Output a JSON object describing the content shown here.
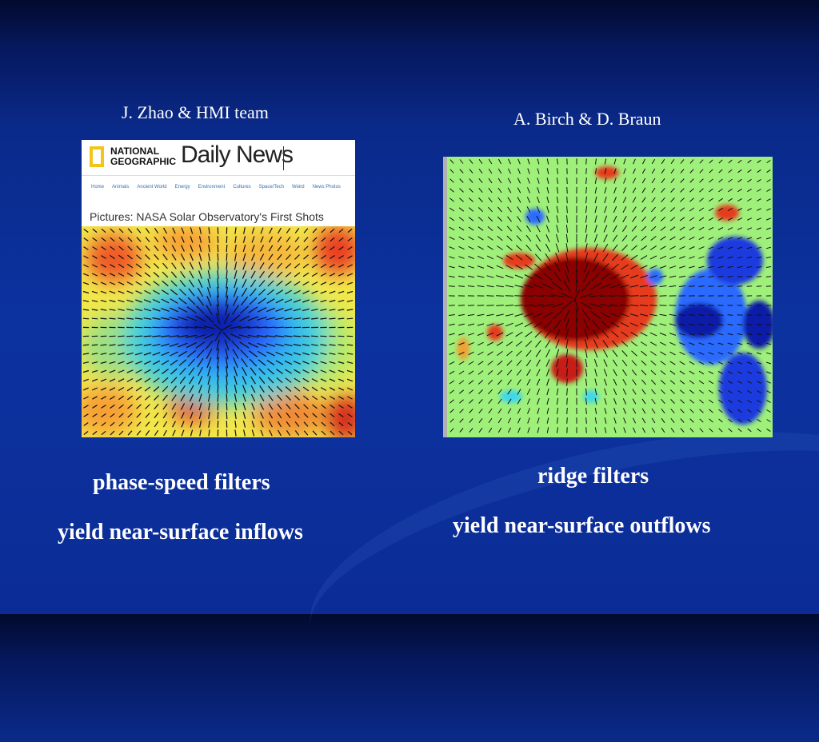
{
  "left": {
    "credit": "J. Zhao & HMI team",
    "caption_line1": "phase-speed filters",
    "caption_line2": "yield near-surface inflows",
    "screenshot": {
      "logo_line1": "NATIONAL",
      "logo_line2": "GEOGRAPHIC",
      "brand": "Daily News",
      "nav": [
        "Home",
        "Animals",
        "Ancient World",
        "Energy",
        "Environment",
        "Cultures",
        "Space/Tech",
        "Weird",
        "News Photos"
      ],
      "headline": "Pictures: NASA Solar Observatory's First Shots"
    }
  },
  "right": {
    "credit": "A. Birch & D. Braun",
    "caption_line1": "ridge filters",
    "caption_line2": "yield near-surface outflows"
  },
  "colors": {
    "background": "#0c32a0",
    "jet_dark_red": "#8b0000",
    "jet_red": "#e63a1f",
    "jet_orange": "#f7a035",
    "jet_yellow": "#f2ee3c",
    "jet_green": "#9ff07a",
    "jet_cyan": "#3fd8e8",
    "jet_blue": "#2a6bff",
    "jet_dark_blue": "#0a1aa8"
  }
}
